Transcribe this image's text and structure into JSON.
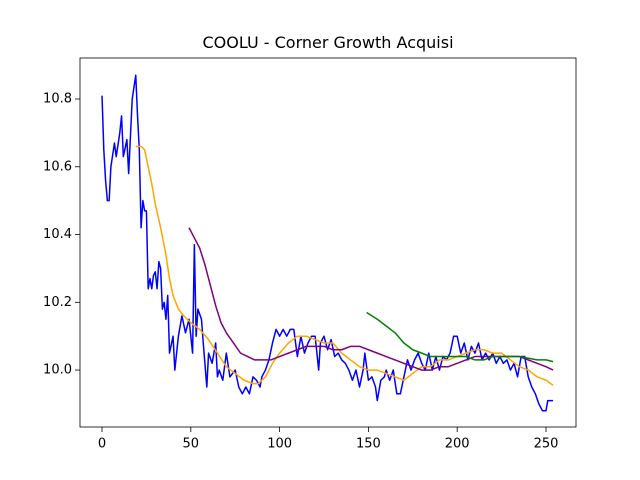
{
  "chart_data": {
    "type": "line",
    "title": "COOLU - Corner Growth Acquisi",
    "xlim": [
      -12.4,
      266.9
    ],
    "ylim": [
      9.832,
      10.921
    ],
    "xticks": [
      0,
      50,
      100,
      150,
      200,
      250
    ],
    "yticks": [
      {
        "value": 10,
        "label": "10.0"
      },
      10.2,
      10.4,
      10.6,
      10.8
    ],
    "series": [
      {
        "color": "#0000ff",
        "x": [
          0,
          1,
          2,
          3,
          4,
          5,
          7,
          8,
          10,
          11,
          12,
          14,
          15,
          17,
          19,
          20,
          21,
          22,
          23,
          24,
          25,
          26,
          27,
          28,
          29,
          30,
          31,
          32,
          33,
          34,
          35,
          36,
          37,
          38,
          40,
          41,
          43,
          45,
          47,
          49,
          51,
          52,
          53,
          54,
          56,
          57,
          59,
          60,
          62,
          64,
          65,
          66,
          68,
          70,
          72,
          75,
          77,
          79,
          81,
          83,
          85,
          87,
          89,
          90,
          92,
          94,
          96,
          98,
          100,
          102,
          104,
          106,
          108,
          110,
          112,
          114,
          116,
          118,
          120,
          122,
          123,
          125,
          127,
          129,
          131,
          133,
          135,
          137,
          139,
          141,
          143,
          145,
          147,
          148,
          150,
          152,
          154,
          155,
          157,
          159,
          160,
          162,
          164,
          166,
          168,
          170,
          172,
          174,
          176,
          178,
          180,
          182,
          184,
          186,
          188,
          190,
          192,
          194,
          196,
          198,
          200,
          202,
          204,
          206,
          208,
          210,
          212,
          214,
          216,
          218,
          220,
          222,
          224,
          226,
          228,
          230,
          232,
          234,
          236,
          238,
          240,
          242,
          244,
          246,
          248,
          250,
          251,
          254
        ],
        "values": [
          10.81,
          10.65,
          10.56,
          10.5,
          10.5,
          10.6,
          10.67,
          10.63,
          10.7,
          10.75,
          10.63,
          10.68,
          10.58,
          10.8,
          10.87,
          10.75,
          10.65,
          10.42,
          10.5,
          10.47,
          10.47,
          10.24,
          10.27,
          10.24,
          10.28,
          10.29,
          10.24,
          10.32,
          10.3,
          10.18,
          10.2,
          10.15,
          10.22,
          10.05,
          10.1,
          10.0,
          10.1,
          10.16,
          10.11,
          10.15,
          10.05,
          10.37,
          10.1,
          10.18,
          10.15,
          10.08,
          9.95,
          10.05,
          10.02,
          10.08,
          9.98,
          10.0,
          9.97,
          10.05,
          9.98,
          10.0,
          9.95,
          9.93,
          9.95,
          9.93,
          9.98,
          9.97,
          9.95,
          9.98,
          10.0,
          10.03,
          10.08,
          10.12,
          10.1,
          10.12,
          10.1,
          10.12,
          10.12,
          10.04,
          10.1,
          10.05,
          10.08,
          10.1,
          10.1,
          10.0,
          10.08,
          10.1,
          10.06,
          10.09,
          10.04,
          10.05,
          10.03,
          10.02,
          10.0,
          9.97,
          10.0,
          9.95,
          10.0,
          10.05,
          9.97,
          9.98,
          9.95,
          9.91,
          9.97,
          9.98,
          10.0,
          9.97,
          10.0,
          9.93,
          9.93,
          9.98,
          10.03,
          10.0,
          10.03,
          10.05,
          10.02,
          10.0,
          10.05,
          10.0,
          10.04,
          10.0,
          10.04,
          10.03,
          10.05,
          10.1,
          10.1,
          10.05,
          10.08,
          10.03,
          10.07,
          10.05,
          10.08,
          10.03,
          10.05,
          10.03,
          10.05,
          10.02,
          10.04,
          10.02,
          10.03,
          10.0,
          10.02,
          9.98,
          10.04,
          10.04,
          9.98,
          9.95,
          9.93,
          9.9,
          9.88,
          9.88,
          9.91,
          9.91
        ]
      },
      {
        "color": "#ffa500",
        "x": [
          19,
          22,
          24,
          26,
          28,
          30,
          33,
          36,
          38,
          40,
          43,
          46,
          50,
          55,
          60,
          65,
          70,
          75,
          80,
          85,
          88,
          92,
          96,
          100,
          105,
          110,
          115,
          120,
          125,
          130,
          135,
          140,
          145,
          150,
          155,
          160,
          165,
          170,
          175,
          180,
          185,
          190,
          195,
          200,
          205,
          210,
          215,
          220,
          225,
          230,
          235,
          240,
          245,
          250,
          254
        ],
        "values": [
          10.66,
          10.66,
          10.65,
          10.6,
          10.55,
          10.49,
          10.42,
          10.34,
          10.27,
          10.22,
          10.18,
          10.16,
          10.14,
          10.12,
          10.09,
          10.05,
          10.01,
          9.99,
          9.97,
          9.96,
          9.96,
          9.98,
          10.02,
          10.05,
          10.08,
          10.1,
          10.1,
          10.09,
          10.08,
          10.08,
          10.05,
          10.03,
          10.01,
          10.0,
          10.0,
          9.99,
          9.98,
          9.97,
          9.99,
          10.01,
          10.01,
          10.03,
          10.03,
          10.04,
          10.05,
          10.06,
          10.06,
          10.05,
          10.05,
          10.03,
          10.01,
          10.0,
          9.98,
          9.97,
          9.955
        ]
      },
      {
        "color": "#800080",
        "x": [
          49,
          52,
          55,
          58,
          61,
          64,
          67,
          70,
          74,
          78,
          82,
          86,
          90,
          95,
          100,
          105,
          110,
          115,
          120,
          125,
          130,
          135,
          140,
          145,
          150,
          155,
          160,
          165,
          170,
          175,
          180,
          185,
          190,
          195,
          200,
          205,
          210,
          215,
          220,
          225,
          230,
          235,
          240,
          245,
          250,
          254
        ],
        "values": [
          10.42,
          10.39,
          10.36,
          10.31,
          10.25,
          10.19,
          10.14,
          10.11,
          10.08,
          10.05,
          10.04,
          10.03,
          10.03,
          10.03,
          10.04,
          10.05,
          10.06,
          10.07,
          10.07,
          10.07,
          10.06,
          10.06,
          10.07,
          10.07,
          10.06,
          10.05,
          10.04,
          10.03,
          10.02,
          10.01,
          10.0,
          10.0,
          10.01,
          10.01,
          10.02,
          10.03,
          10.04,
          10.04,
          10.04,
          10.04,
          10.04,
          10.04,
          10.03,
          10.02,
          10.01,
          10.0
        ]
      },
      {
        "color": "#008000",
        "x": [
          149,
          155,
          160,
          165,
          170,
          175,
          180,
          185,
          190,
          195,
          200,
          205,
          210,
          215,
          220,
          225,
          230,
          235,
          240,
          245,
          250,
          254
        ],
        "values": [
          10.17,
          10.15,
          10.13,
          10.11,
          10.08,
          10.06,
          10.05,
          10.04,
          10.04,
          10.04,
          10.04,
          10.04,
          10.03,
          10.03,
          10.04,
          10.04,
          10.04,
          10.04,
          10.035,
          10.03,
          10.03,
          10.025
        ]
      }
    ]
  }
}
